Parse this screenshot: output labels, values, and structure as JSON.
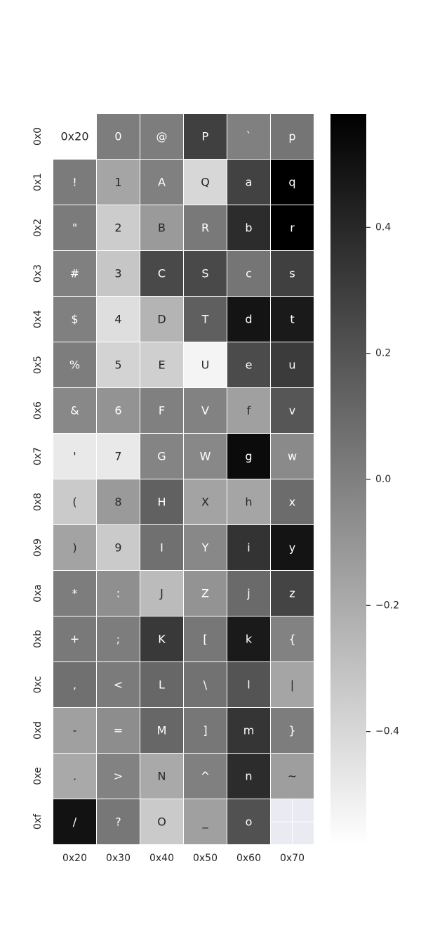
{
  "chart_data": {
    "type": "heatmap",
    "x_tick_labels": [
      "0x20",
      "0x30",
      "0x40",
      "0x50",
      "0x60",
      "0x70"
    ],
    "y_tick_labels": [
      "0x0",
      "0x1",
      "0x2",
      "0x3",
      "0x4",
      "0x5",
      "0x6",
      "0x7",
      "0x8",
      "0x9",
      "0xa",
      "0xb",
      "0xc",
      "0xd",
      "0xe",
      "0xf"
    ],
    "cell_labels": [
      [
        "0x20",
        "0",
        "@",
        "P",
        "`",
        "p"
      ],
      [
        "!",
        "1",
        "A",
        "Q",
        "a",
        "q"
      ],
      [
        "\"",
        "2",
        "B",
        "R",
        "b",
        "r"
      ],
      [
        "#",
        "3",
        "C",
        "S",
        "c",
        "s"
      ],
      [
        "$",
        "4",
        "D",
        "T",
        "d",
        "t"
      ],
      [
        "%",
        "5",
        "E",
        "U",
        "e",
        "u"
      ],
      [
        "&",
        "6",
        "F",
        "V",
        "f",
        "v"
      ],
      [
        "'",
        "7",
        "G",
        "W",
        "g",
        "w"
      ],
      [
        "(",
        "8",
        "H",
        "X",
        "h",
        "x"
      ],
      [
        ")",
        "9",
        "I",
        "Y",
        "i",
        "y"
      ],
      [
        "*",
        ":",
        "J",
        "Z",
        "j",
        "z"
      ],
      [
        "+",
        ";",
        "K",
        "[",
        "k",
        "{"
      ],
      [
        ",",
        "<",
        "L",
        "\\",
        "l",
        "|"
      ],
      [
        "-",
        "=",
        "M",
        "]",
        "m",
        "}"
      ],
      [
        ".",
        ">",
        "N",
        "^",
        "n",
        "~"
      ],
      [
        "/",
        "?",
        "O",
        "_",
        "o",
        ""
      ]
    ],
    "values": [
      [
        -0.58,
        0.01,
        0.01,
        0.29,
        0.0,
        0.05
      ],
      [
        0.02,
        -0.17,
        0.0,
        -0.4,
        0.28,
        0.58
      ],
      [
        0.02,
        -0.35,
        -0.12,
        0.03,
        0.38,
        0.58
      ],
      [
        0.0,
        -0.32,
        0.25,
        0.25,
        0.05,
        0.29
      ],
      [
        0.0,
        -0.43,
        -0.24,
        0.15,
        0.49,
        0.46
      ],
      [
        0.01,
        -0.38,
        -0.36,
        -0.53,
        0.24,
        0.31
      ],
      [
        -0.04,
        -0.09,
        0.0,
        -0.01,
        -0.15,
        0.19
      ],
      [
        -0.48,
        -0.48,
        -0.02,
        -0.04,
        0.53,
        -0.05
      ],
      [
        -0.34,
        -0.12,
        0.14,
        -0.16,
        -0.17,
        0.09
      ],
      [
        -0.16,
        -0.34,
        0.07,
        -0.04,
        0.35,
        0.49
      ],
      [
        0.01,
        -0.07,
        -0.27,
        -0.09,
        0.1,
        0.27
      ],
      [
        0.03,
        0.01,
        0.32,
        0.04,
        0.46,
        -0.01
      ],
      [
        0.07,
        0.02,
        0.11,
        0.06,
        0.2,
        -0.17
      ],
      [
        -0.15,
        -0.06,
        0.11,
        0.04,
        0.34,
        0.01
      ],
      [
        -0.19,
        -0.01,
        -0.19,
        0.0,
        0.38,
        -0.14
      ],
      [
        0.5,
        0.04,
        -0.34,
        -0.15,
        0.21,
        null
      ]
    ],
    "missing_cell_color": "#eaeaf2",
    "colormap": "gray_r",
    "vmin": -0.58,
    "vmax": 0.58,
    "colorbar": {
      "ticks": [
        0.4,
        0.2,
        0.0,
        -0.2,
        -0.4
      ],
      "tick_labels": [
        "0.4",
        "0.2",
        "0.0",
        "−0.2",
        "−0.4"
      ]
    },
    "title": "",
    "xlabel": "",
    "ylabel": "",
    "grid": false
  }
}
